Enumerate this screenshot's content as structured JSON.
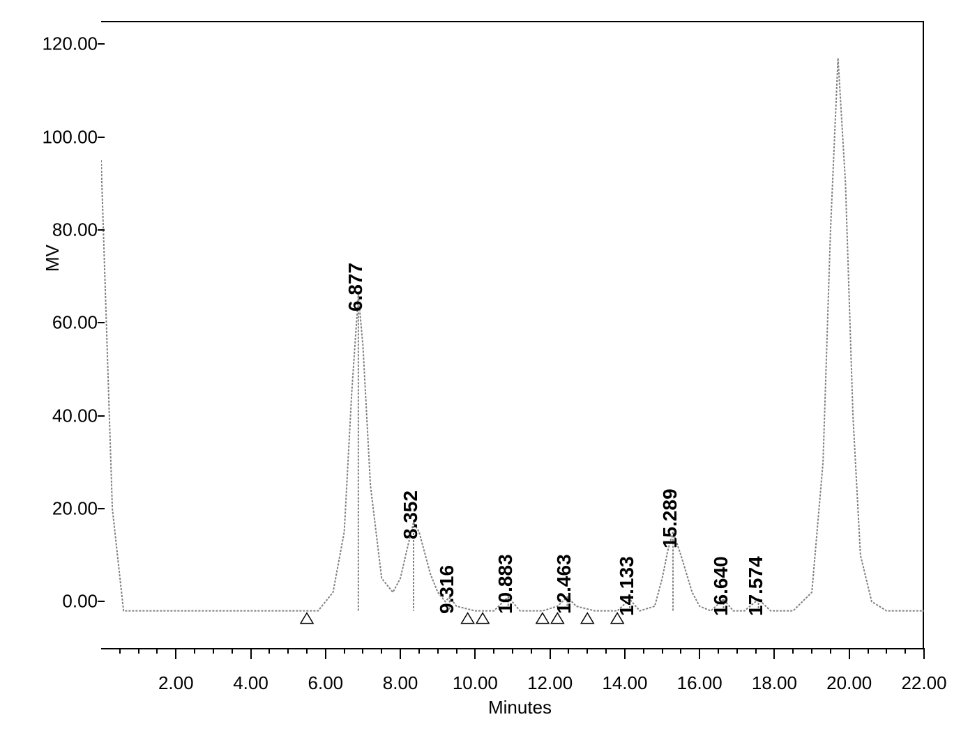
{
  "chromatogram": {
    "type": "line",
    "ylabel": "MV",
    "xlabel": "Minutes",
    "ylim": [
      -10,
      125
    ],
    "xlim": [
      0,
      22
    ],
    "y_ticks": [
      0.0,
      20.0,
      40.0,
      60.0,
      80.0,
      100.0,
      120.0
    ],
    "y_tick_labels": [
      "0.00",
      "20.00",
      "40.00",
      "60.00",
      "80.00",
      "100.00",
      "120.00"
    ],
    "x_ticks": [
      2.0,
      4.0,
      6.0,
      8.0,
      10.0,
      12.0,
      14.0,
      16.0,
      18.0,
      20.0,
      22.0
    ],
    "x_tick_labels": [
      "2.00",
      "4.00",
      "6.00",
      "8.00",
      "10.00",
      "12.00",
      "14.00",
      "16.00",
      "18.00",
      "20.00",
      "22.00"
    ],
    "x_minor_step": 0.5,
    "background_color": "#ffffff",
    "line_color": "#808080",
    "axis_color": "#000000",
    "line_width": 2,
    "font_size_axis": 26,
    "font_size_peak_label": 28,
    "peaks": [
      {
        "rt": 6.877,
        "height": 66,
        "label": "6.877"
      },
      {
        "rt": 8.352,
        "height": 17,
        "label": "8.352"
      },
      {
        "rt": 9.316,
        "height": 1,
        "label": "9.316"
      },
      {
        "rt": 10.883,
        "height": 1,
        "label": "10.883"
      },
      {
        "rt": 12.463,
        "height": 1,
        "label": "12.463"
      },
      {
        "rt": 14.133,
        "height": 0.5,
        "label": "14.133"
      },
      {
        "rt": 15.289,
        "height": 15,
        "label": "15.289"
      },
      {
        "rt": 16.64,
        "height": 0.5,
        "label": "16.640"
      },
      {
        "rt": 17.574,
        "height": 0.5,
        "label": "17.574"
      },
      {
        "rt": 19.7,
        "height": 117,
        "label": ""
      }
    ],
    "triangle_markers_x": [
      5.5,
      9.8,
      10.2,
      11.8,
      12.2,
      13.0,
      13.8
    ],
    "baseline_y": -2,
    "trace_points": [
      [
        0.0,
        95
      ],
      [
        0.3,
        20
      ],
      [
        0.6,
        -2
      ],
      [
        1.0,
        -2
      ],
      [
        5.0,
        -2
      ],
      [
        5.8,
        -2
      ],
      [
        6.2,
        2
      ],
      [
        6.5,
        15
      ],
      [
        6.7,
        45
      ],
      [
        6.877,
        66
      ],
      [
        7.0,
        55
      ],
      [
        7.2,
        25
      ],
      [
        7.5,
        5
      ],
      [
        7.8,
        2
      ],
      [
        8.0,
        5
      ],
      [
        8.2,
        12
      ],
      [
        8.352,
        17
      ],
      [
        8.5,
        15
      ],
      [
        8.8,
        6
      ],
      [
        9.0,
        2
      ],
      [
        9.2,
        0
      ],
      [
        9.316,
        1
      ],
      [
        9.5,
        -1
      ],
      [
        10.0,
        -2
      ],
      [
        10.5,
        -2
      ],
      [
        10.883,
        1
      ],
      [
        11.2,
        -2
      ],
      [
        11.8,
        -2
      ],
      [
        12.2,
        -1
      ],
      [
        12.463,
        1
      ],
      [
        12.7,
        -1
      ],
      [
        13.2,
        -2
      ],
      [
        13.8,
        -2
      ],
      [
        14.133,
        0.5
      ],
      [
        14.4,
        -2
      ],
      [
        14.8,
        -1
      ],
      [
        15.0,
        5
      ],
      [
        15.15,
        11
      ],
      [
        15.289,
        15
      ],
      [
        15.5,
        10
      ],
      [
        15.8,
        2
      ],
      [
        16.0,
        -1
      ],
      [
        16.3,
        -2
      ],
      [
        16.64,
        0.5
      ],
      [
        16.9,
        -2
      ],
      [
        17.2,
        -2
      ],
      [
        17.574,
        0.5
      ],
      [
        17.9,
        -2
      ],
      [
        18.5,
        -2
      ],
      [
        19.0,
        2
      ],
      [
        19.3,
        30
      ],
      [
        19.5,
        80
      ],
      [
        19.7,
        117
      ],
      [
        19.9,
        90
      ],
      [
        20.1,
        40
      ],
      [
        20.3,
        10
      ],
      [
        20.6,
        0
      ],
      [
        21.0,
        -2
      ],
      [
        22.0,
        -2
      ]
    ]
  }
}
